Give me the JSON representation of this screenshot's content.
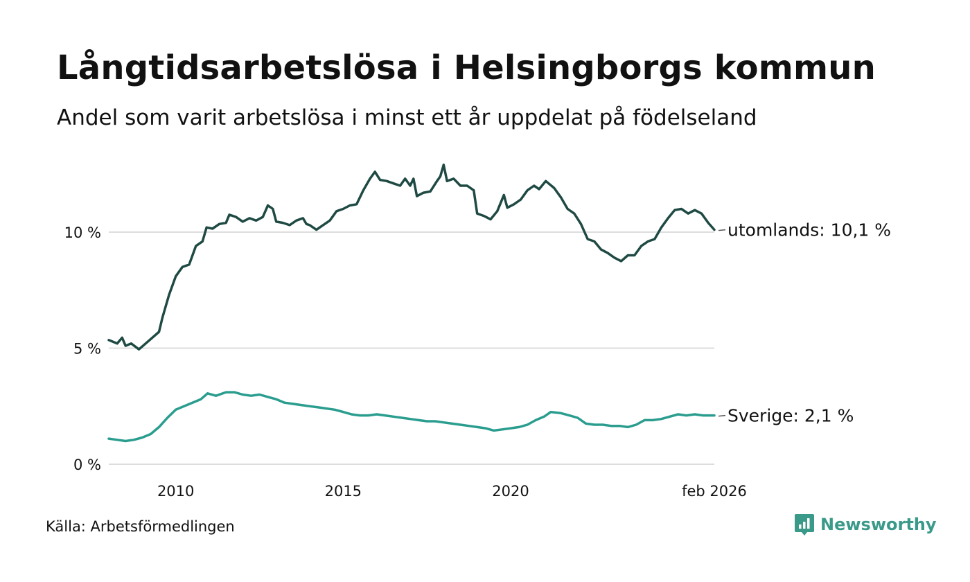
{
  "header": {
    "title": "Långtidsarbetslösa i Helsingborgs kommun",
    "subtitle": "Andel som varit arbetslösa i minst ett år uppdelat på födelseland"
  },
  "footer": {
    "source": "Källa: Arbetsförmedlingen",
    "brand": "Newsworthy"
  },
  "colors": {
    "utomlands": "#1f4a43",
    "sverige": "#2a9d8f",
    "grid": "#dddddd",
    "brand": "#3a9a8a"
  },
  "chart_data": {
    "type": "line",
    "title": "Långtidsarbetslösa i Helsingborgs kommun",
    "subtitle": "Andel som varit arbetslösa i minst ett år uppdelat på födelseland",
    "unit": "%",
    "x_range": [
      2008.0,
      2026.083
    ],
    "ylim": [
      0,
      13
    ],
    "y_ticks": [
      {
        "value": 0,
        "label": "0 %"
      },
      {
        "value": 5,
        "label": "5 %"
      },
      {
        "value": 10,
        "label": "10 %"
      }
    ],
    "x_ticks": [
      {
        "value": 2010,
        "label": "2010"
      },
      {
        "value": 2015,
        "label": "2015"
      },
      {
        "value": 2020,
        "label": "2020"
      },
      {
        "value": 2026.083,
        "label": "feb 2026"
      }
    ],
    "grid": true,
    "series": [
      {
        "name": "utomlands",
        "end_label": "utomlands: 10,1 %",
        "points": [
          [
            2008.0,
            5.35
          ],
          [
            2008.25,
            5.2
          ],
          [
            2008.4,
            5.45
          ],
          [
            2008.5,
            5.1
          ],
          [
            2008.67,
            5.2
          ],
          [
            2008.9,
            4.95
          ],
          [
            2009.1,
            5.2
          ],
          [
            2009.3,
            5.45
          ],
          [
            2009.5,
            5.7
          ],
          [
            2009.6,
            6.3
          ],
          [
            2009.8,
            7.3
          ],
          [
            2010.0,
            8.1
          ],
          [
            2010.2,
            8.5
          ],
          [
            2010.4,
            8.6
          ],
          [
            2010.6,
            9.4
          ],
          [
            2010.8,
            9.6
          ],
          [
            2010.92,
            10.2
          ],
          [
            2011.1,
            10.15
          ],
          [
            2011.3,
            10.35
          ],
          [
            2011.5,
            10.4
          ],
          [
            2011.6,
            10.75
          ],
          [
            2011.8,
            10.65
          ],
          [
            2012.0,
            10.45
          ],
          [
            2012.2,
            10.6
          ],
          [
            2012.4,
            10.5
          ],
          [
            2012.6,
            10.65
          ],
          [
            2012.75,
            11.15
          ],
          [
            2012.9,
            11.0
          ],
          [
            2013.0,
            10.45
          ],
          [
            2013.2,
            10.4
          ],
          [
            2013.4,
            10.3
          ],
          [
            2013.6,
            10.5
          ],
          [
            2013.8,
            10.6
          ],
          [
            2013.9,
            10.35
          ],
          [
            2014.0,
            10.3
          ],
          [
            2014.2,
            10.1
          ],
          [
            2014.4,
            10.3
          ],
          [
            2014.6,
            10.5
          ],
          [
            2014.8,
            10.9
          ],
          [
            2015.0,
            11.0
          ],
          [
            2015.2,
            11.15
          ],
          [
            2015.4,
            11.2
          ],
          [
            2015.6,
            11.8
          ],
          [
            2015.8,
            12.3
          ],
          [
            2015.95,
            12.6
          ],
          [
            2016.1,
            12.25
          ],
          [
            2016.3,
            12.2
          ],
          [
            2016.5,
            12.1
          ],
          [
            2016.7,
            12.0
          ],
          [
            2016.85,
            12.3
          ],
          [
            2017.0,
            12.0
          ],
          [
            2017.1,
            12.3
          ],
          [
            2017.2,
            11.55
          ],
          [
            2017.4,
            11.7
          ],
          [
            2017.6,
            11.75
          ],
          [
            2017.8,
            12.2
          ],
          [
            2017.9,
            12.4
          ],
          [
            2018.0,
            12.9
          ],
          [
            2018.1,
            12.2
          ],
          [
            2018.3,
            12.3
          ],
          [
            2018.5,
            12.0
          ],
          [
            2018.7,
            12.0
          ],
          [
            2018.9,
            11.8
          ],
          [
            2019.0,
            10.8
          ],
          [
            2019.2,
            10.7
          ],
          [
            2019.4,
            10.55
          ],
          [
            2019.6,
            10.9
          ],
          [
            2019.8,
            11.6
          ],
          [
            2019.9,
            11.05
          ],
          [
            2020.1,
            11.2
          ],
          [
            2020.3,
            11.4
          ],
          [
            2020.5,
            11.8
          ],
          [
            2020.7,
            12.0
          ],
          [
            2020.85,
            11.85
          ],
          [
            2021.05,
            12.2
          ],
          [
            2021.3,
            11.9
          ],
          [
            2021.5,
            11.5
          ],
          [
            2021.7,
            11.0
          ],
          [
            2021.9,
            10.8
          ],
          [
            2022.1,
            10.35
          ],
          [
            2022.3,
            9.7
          ],
          [
            2022.5,
            9.6
          ],
          [
            2022.7,
            9.25
          ],
          [
            2022.9,
            9.1
          ],
          [
            2023.1,
            8.9
          ],
          [
            2023.3,
            8.75
          ],
          [
            2023.5,
            9.0
          ],
          [
            2023.7,
            9.0
          ],
          [
            2023.9,
            9.4
          ],
          [
            2024.1,
            9.6
          ],
          [
            2024.3,
            9.7
          ],
          [
            2024.5,
            10.2
          ],
          [
            2024.7,
            10.6
          ],
          [
            2024.9,
            10.95
          ],
          [
            2025.1,
            11.0
          ],
          [
            2025.3,
            10.8
          ],
          [
            2025.5,
            10.95
          ],
          [
            2025.7,
            10.8
          ],
          [
            2025.9,
            10.4
          ],
          [
            2026.083,
            10.1
          ]
        ]
      },
      {
        "name": "Sverige",
        "end_label": "Sverige:  2,1 %",
        "points": [
          [
            2008.0,
            1.1
          ],
          [
            2008.25,
            1.05
          ],
          [
            2008.5,
            1.0
          ],
          [
            2008.75,
            1.05
          ],
          [
            2009.0,
            1.15
          ],
          [
            2009.25,
            1.3
          ],
          [
            2009.5,
            1.6
          ],
          [
            2009.75,
            2.0
          ],
          [
            2010.0,
            2.35
          ],
          [
            2010.25,
            2.5
          ],
          [
            2010.5,
            2.65
          ],
          [
            2010.75,
            2.8
          ],
          [
            2010.95,
            3.05
          ],
          [
            2011.2,
            2.95
          ],
          [
            2011.5,
            3.1
          ],
          [
            2011.75,
            3.1
          ],
          [
            2012.0,
            3.0
          ],
          [
            2012.25,
            2.95
          ],
          [
            2012.5,
            3.0
          ],
          [
            2012.75,
            2.9
          ],
          [
            2013.0,
            2.8
          ],
          [
            2013.25,
            2.65
          ],
          [
            2013.5,
            2.6
          ],
          [
            2013.75,
            2.55
          ],
          [
            2014.0,
            2.5
          ],
          [
            2014.25,
            2.45
          ],
          [
            2014.5,
            2.4
          ],
          [
            2014.75,
            2.35
          ],
          [
            2015.0,
            2.25
          ],
          [
            2015.25,
            2.15
          ],
          [
            2015.5,
            2.1
          ],
          [
            2015.75,
            2.1
          ],
          [
            2016.0,
            2.15
          ],
          [
            2016.25,
            2.1
          ],
          [
            2016.5,
            2.05
          ],
          [
            2016.75,
            2.0
          ],
          [
            2017.0,
            1.95
          ],
          [
            2017.25,
            1.9
          ],
          [
            2017.5,
            1.85
          ],
          [
            2017.75,
            1.85
          ],
          [
            2018.0,
            1.8
          ],
          [
            2018.25,
            1.75
          ],
          [
            2018.5,
            1.7
          ],
          [
            2018.75,
            1.65
          ],
          [
            2019.0,
            1.6
          ],
          [
            2019.25,
            1.55
          ],
          [
            2019.5,
            1.45
          ],
          [
            2019.75,
            1.5
          ],
          [
            2020.0,
            1.55
          ],
          [
            2020.25,
            1.6
          ],
          [
            2020.5,
            1.7
          ],
          [
            2020.75,
            1.9
          ],
          [
            2021.0,
            2.05
          ],
          [
            2021.2,
            2.25
          ],
          [
            2021.5,
            2.2
          ],
          [
            2021.75,
            2.1
          ],
          [
            2022.0,
            2.0
          ],
          [
            2022.25,
            1.75
          ],
          [
            2022.5,
            1.7
          ],
          [
            2022.75,
            1.7
          ],
          [
            2023.0,
            1.65
          ],
          [
            2023.25,
            1.65
          ],
          [
            2023.5,
            1.6
          ],
          [
            2023.75,
            1.7
          ],
          [
            2024.0,
            1.9
          ],
          [
            2024.25,
            1.9
          ],
          [
            2024.5,
            1.95
          ],
          [
            2024.75,
            2.05
          ],
          [
            2025.0,
            2.15
          ],
          [
            2025.25,
            2.1
          ],
          [
            2025.5,
            2.15
          ],
          [
            2025.75,
            2.1
          ],
          [
            2026.083,
            2.1
          ]
        ]
      }
    ]
  }
}
